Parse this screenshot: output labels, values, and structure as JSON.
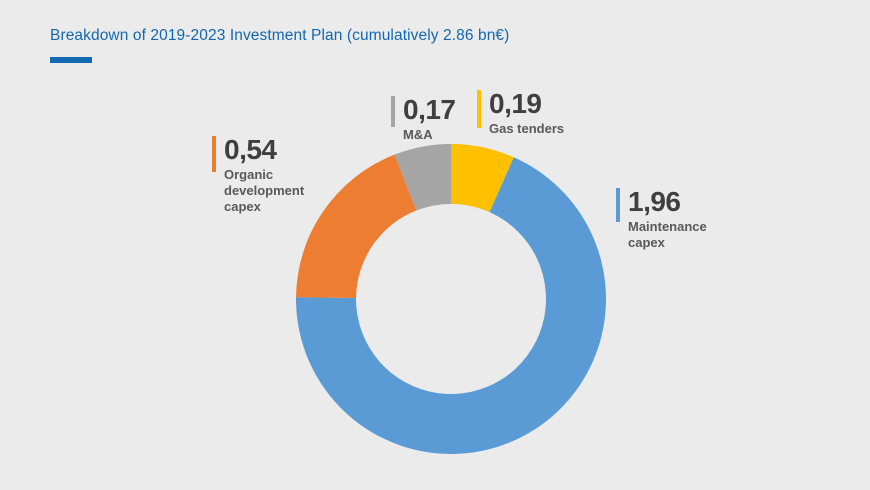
{
  "header": {
    "title": "Breakdown of 2019-2023 Investment Plan (cumulatively 2.86 bn€)",
    "title_color": "#1268b1",
    "accent_color": "#1268b1"
  },
  "chart_data": {
    "type": "pie",
    "subtype": "donut",
    "title": "Breakdown of 2019-2023 Investment Plan (cumulatively 2.86 bn€)",
    "unit": "bn€",
    "total": 2.86,
    "start_angle_deg": 0,
    "direction": "clockwise",
    "hole_ratio": 0.61,
    "background": "#ebebeb",
    "segments": [
      {
        "name": "Gas tenders",
        "value": 0.19,
        "value_display": "0,19",
        "color": "#FFC000"
      },
      {
        "name": "Maintenance capex",
        "value": 1.96,
        "value_display": "1,96",
        "color": "#5B9BD5"
      },
      {
        "name": "Organic development capex",
        "value": 0.54,
        "value_display": "0,54",
        "color": "#ED7D31"
      },
      {
        "name": "M&A",
        "value": 0.17,
        "value_display": "0,17",
        "color": "#A5A5A5"
      }
    ]
  },
  "labels": {
    "organic": {
      "value": "0,54",
      "name": "Organic\ndevelopment\ncapex",
      "color": "#ED7D31"
    },
    "mna": {
      "value": "0,17",
      "name": "M&A",
      "color": "#A5A5A5"
    },
    "gas": {
      "value": "0,19",
      "name": "Gas tenders",
      "color": "#FFC000"
    },
    "maintenance": {
      "value": "1,96",
      "name": "Maintenance\ncapex",
      "color": "#5B9BD5"
    }
  }
}
